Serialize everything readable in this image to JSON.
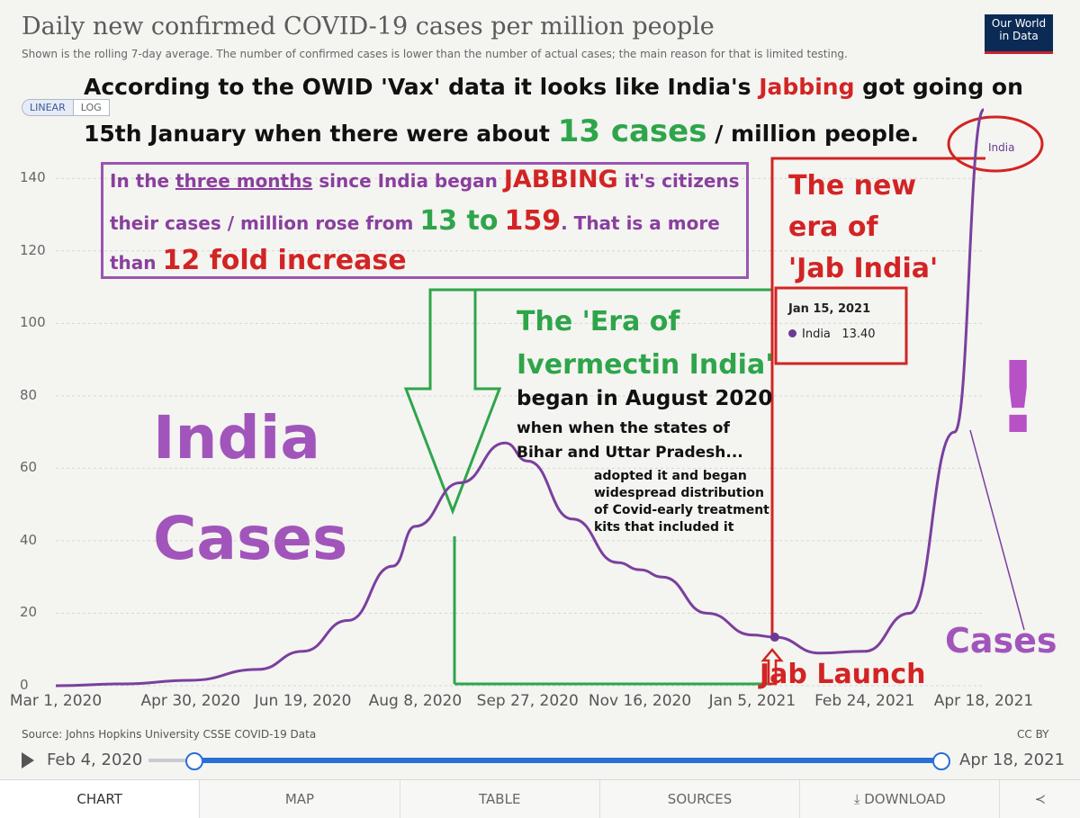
{
  "header": {
    "title": "Daily new confirmed COVID-19 cases per million people",
    "subtitle": "Shown is the rolling 7-day average. The number of confirmed cases is lower than the number of actual cases; the main reason for that is limited testing.",
    "logo_line1": "Our World",
    "logo_line2": "in Data"
  },
  "scale_toggle": {
    "linear": "LINEAR",
    "log": "LOG"
  },
  "annotations": {
    "head1_a": "According to the OWID 'Vax' data it looks like India's ",
    "head1_b": "Jabbing",
    "head1_c": " got going on",
    "head2_a": "15th January when there were about ",
    "head2_b": "13 cases",
    "head2_c": " / million people.",
    "p1_a": "In the ",
    "p1_b": "three months",
    "p1_c": " since India began ",
    "p1_d": "JABBING",
    "p1_e": " it's citizens",
    "p2_a": "their cases / million rose from ",
    "p2_b": "13 to",
    "p2_c": "159",
    "p2_d": ". That is a more",
    "p3_a": "than ",
    "p3_b": "12 fold increase",
    "india": "India",
    "cases": "Cases",
    "cases_right": "Cases",
    "exclaim": "!",
    "new_era": "The new era of 'Jab India'",
    "era1": "The 'Era of",
    "era2": "Ivermectin India'",
    "era3": "began in August 2020",
    "era4": "when when the states of",
    "era5": "Bihar and Uttar Pradesh...",
    "era6": "adopted it and began\nwidespread distribution\nof Covid-early treatment\nkits that included it",
    "jab_launch": "Jab Launch"
  },
  "tooltip": {
    "date": "Jan 15, 2021",
    "series": "India",
    "value": "13.40"
  },
  "series_label": "India",
  "chart_data": {
    "type": "line",
    "title": "Daily new confirmed COVID-19 cases per million people",
    "ylim": [
      0,
      150
    ],
    "yticks": [
      "0",
      "20",
      "40",
      "60",
      "80",
      "100",
      "120",
      "140"
    ],
    "xticks": [
      "Mar 1, 2020",
      "Apr 30, 2020",
      "Jun 19, 2020",
      "Aug 8, 2020",
      "Sep 27, 2020",
      "Nov 16, 2020",
      "Jan 5, 2021",
      "Feb 24, 2021",
      "Apr 18, 2021"
    ],
    "grid": true,
    "series": [
      {
        "name": "India",
        "color": "#7b3f9e",
        "x": [
          "Mar 1, 2020",
          "Mar 31, 2020",
          "Apr 30, 2020",
          "May 30, 2020",
          "Jun 19, 2020",
          "Jul 9, 2020",
          "Jul 29, 2020",
          "Aug 8, 2020",
          "Aug 28, 2020",
          "Sep 17, 2020",
          "Sep 27, 2020",
          "Oct 17, 2020",
          "Nov 6, 2020",
          "Nov 16, 2020",
          "Nov 26, 2020",
          "Dec 16, 2020",
          "Jan 5, 2021",
          "Jan 15, 2021",
          "Feb 4, 2021",
          "Feb 24, 2021",
          "Mar 16, 2021",
          "Apr 5, 2021",
          "Apr 18, 2021"
        ],
        "values": [
          0,
          0.5,
          1.5,
          4.5,
          9.5,
          18,
          33,
          44,
          56,
          67,
          62,
          46,
          34,
          32,
          30,
          20,
          14,
          13.4,
          9,
          9.5,
          20,
          70,
          159
        ]
      }
    ],
    "start_date": "Feb 4, 2020",
    "end_date": "Apr 18, 2021"
  },
  "footer": {
    "source": "Source: Johns Hopkins University CSSE COVID-19 Data",
    "license": "CC BY"
  },
  "tabs": [
    "CHART",
    "MAP",
    "TABLE",
    "SOURCES",
    "DOWNLOAD"
  ],
  "colors": {
    "line": "#7b3f9e",
    "green_annotation": "#2ea54a",
    "red_annotation": "#d22424",
    "purple_annotation": "#a155ba"
  }
}
